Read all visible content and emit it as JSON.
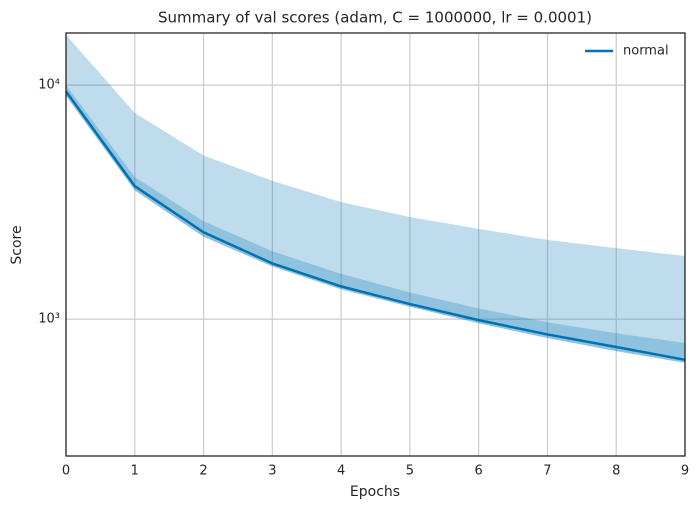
{
  "chart_data": {
    "type": "line",
    "title": "Summary of val scores (adam, C = 1000000, lr = 0.0001)",
    "xlabel": "Epochs",
    "ylabel": "Score",
    "x": [
      0,
      1,
      2,
      3,
      4,
      5,
      6,
      7,
      8,
      9
    ],
    "series": [
      {
        "name": "normal",
        "color": "#0072b2",
        "values": [
          9400,
          3700,
          2350,
          1730,
          1380,
          1160,
          990,
          860,
          760,
          670
        ]
      }
    ],
    "bands": [
      {
        "color": "#0072b2",
        "opacity": 0.25,
        "upper": [
          16400,
          7600,
          5000,
          3900,
          3160,
          2730,
          2430,
          2180,
          2010,
          1860
        ],
        "lower": [
          9000,
          3550,
          2250,
          1680,
          1340,
          1130,
          960,
          830,
          730,
          650
        ]
      },
      {
        "color": "#0072b2",
        "opacity": 0.25,
        "upper": [
          10000,
          4050,
          2620,
          1950,
          1560,
          1300,
          1110,
          970,
          870,
          790
        ],
        "lower": [
          9000,
          3550,
          2250,
          1680,
          1340,
          1130,
          960,
          830,
          730,
          650
        ]
      }
    ],
    "xlim": [
      0,
      9
    ],
    "xticks": [
      0,
      1,
      2,
      3,
      4,
      5,
      6,
      7,
      8,
      9
    ],
    "ylim": [
      260,
      16700
    ],
    "yticks": [
      {
        "value": 1000,
        "label": "10³"
      },
      {
        "value": 10000,
        "label": "10⁴"
      }
    ],
    "log_y": true,
    "grid": true,
    "legend": "upper right"
  }
}
